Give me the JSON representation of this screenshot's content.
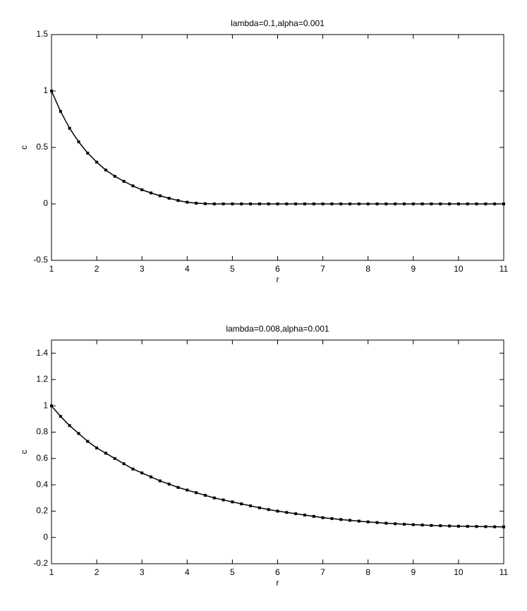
{
  "chart_data": [
    {
      "type": "line",
      "title": "lambda=0.1,alpha=0.001",
      "x_label": "r",
      "y_label": "c",
      "color": "#000000",
      "x": [
        1,
        1.2,
        1.4,
        1.6,
        1.8,
        2,
        2.2,
        2.4,
        2.6,
        2.8,
        3,
        3.2,
        3.4,
        3.6,
        3.8,
        4,
        4.2,
        4.4,
        4.6,
        4.8,
        5,
        5.2,
        5.4,
        5.6,
        5.8,
        6,
        6.2,
        6.4,
        6.6,
        6.8,
        7,
        7.2,
        7.4,
        7.6,
        7.8,
        8,
        8.2,
        8.4,
        8.6,
        8.8,
        9,
        9.2,
        9.4,
        9.6,
        9.8,
        10,
        10.2,
        10.4,
        10.6,
        10.8,
        11
      ],
      "values": [
        1,
        0.82,
        0.67,
        0.55,
        0.45,
        0.37,
        0.3,
        0.245,
        0.2,
        0.16,
        0.125,
        0.097,
        0.072,
        0.05,
        0.03,
        0.015,
        0.006,
        0.002,
        0,
        0,
        0,
        0,
        0,
        0,
        0,
        0,
        0,
        0,
        0,
        0,
        0,
        0,
        0,
        0,
        0,
        0,
        0,
        0,
        0,
        0,
        0,
        0,
        0,
        0,
        0,
        0,
        0,
        0,
        0,
        0,
        0
      ],
      "xlim": [
        1,
        11
      ],
      "xticks": [
        1,
        2,
        3,
        4,
        5,
        6,
        7,
        8,
        9,
        10,
        11
      ],
      "ylim": [
        -0.5,
        1.5
      ],
      "yticks": [
        -0.5,
        0,
        0.5,
        1,
        1.5
      ]
    },
    {
      "type": "line",
      "title": "lambda=0.008,alpha=0.001",
      "x_label": "r",
      "y_label": "c",
      "color": "#000000",
      "x": [
        1,
        1.2,
        1.4,
        1.6,
        1.8,
        2,
        2.2,
        2.4,
        2.6,
        2.8,
        3,
        3.2,
        3.4,
        3.6,
        3.8,
        4,
        4.2,
        4.4,
        4.6,
        4.8,
        5,
        5.2,
        5.4,
        5.6,
        5.8,
        6,
        6.2,
        6.4,
        6.6,
        6.8,
        7,
        7.2,
        7.4,
        7.6,
        7.8,
        8,
        8.2,
        8.4,
        8.6,
        8.8,
        9,
        9.2,
        9.4,
        9.6,
        9.8,
        10,
        10.2,
        10.4,
        10.6,
        10.8,
        11
      ],
      "values": [
        1,
        0.92,
        0.85,
        0.79,
        0.73,
        0.68,
        0.64,
        0.6,
        0.56,
        0.52,
        0.49,
        0.46,
        0.43,
        0.405,
        0.38,
        0.36,
        0.34,
        0.32,
        0.3,
        0.285,
        0.27,
        0.255,
        0.24,
        0.225,
        0.212,
        0.2,
        0.19,
        0.18,
        0.17,
        0.16,
        0.15,
        0.143,
        0.136,
        0.13,
        0.124,
        0.118,
        0.113,
        0.108,
        0.104,
        0.1,
        0.097,
        0.094,
        0.091,
        0.089,
        0.087,
        0.085,
        0.084,
        0.083,
        0.082,
        0.081,
        0.08
      ],
      "xlim": [
        1,
        11
      ],
      "xticks": [
        1,
        2,
        3,
        4,
        5,
        6,
        7,
        8,
        9,
        10,
        11
      ],
      "ylim": [
        -0.2,
        1.5
      ],
      "yticks": [
        -0.2,
        0,
        0.2,
        0.4,
        0.6,
        0.8,
        1,
        1.2,
        1.4
      ]
    }
  ]
}
